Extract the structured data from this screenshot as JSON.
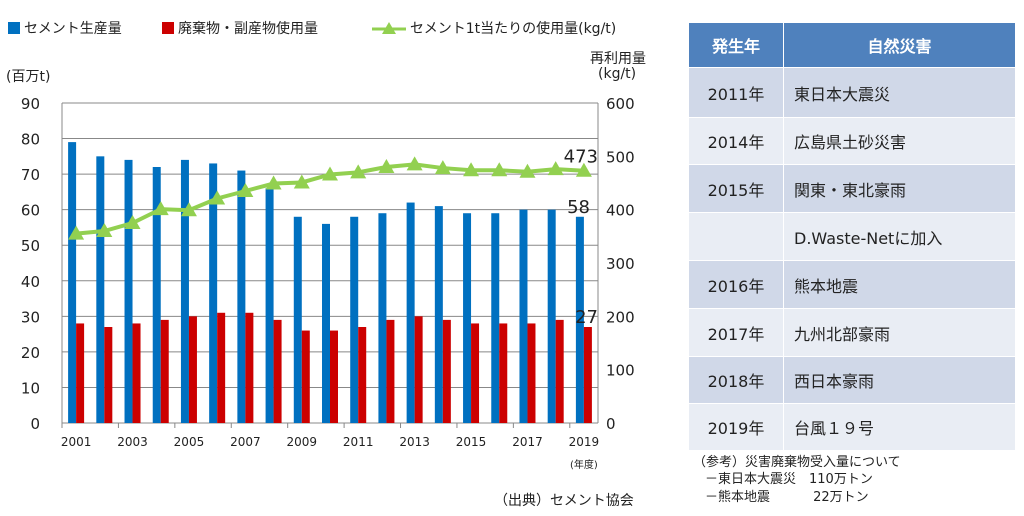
{
  "chart_data": {
    "type": "bar+line",
    "categories": [
      "2001",
      "2002",
      "2003",
      "2004",
      "2005",
      "2006",
      "2007",
      "2008",
      "2009",
      "2010",
      "2011",
      "2012",
      "2013",
      "2014",
      "2015",
      "2016",
      "2017",
      "2018",
      "2019"
    ],
    "x_tick_labels": [
      "2001",
      "2003",
      "2005",
      "2007",
      "2009",
      "2011",
      "2013",
      "2015",
      "2017",
      "2019"
    ],
    "xlabel": "(年度)",
    "ylabel": "(百万t)",
    "y2label_line1": "再利用量",
    "y2label_line2": "(kg/t)",
    "ylim": [
      0,
      90
    ],
    "y_ticks": [
      0,
      10,
      20,
      30,
      40,
      50,
      60,
      70,
      80,
      90
    ],
    "y2lim": [
      0,
      600
    ],
    "y2_ticks": [
      0,
      100,
      200,
      300,
      400,
      500,
      600
    ],
    "series": [
      {
        "name": "セメント生産量",
        "type": "bar",
        "axis": "left",
        "color": "#0070c0",
        "values": [
          79,
          75,
          74,
          72,
          74,
          73,
          71,
          66,
          58,
          56,
          58,
          59,
          62,
          61,
          59,
          59,
          60,
          60,
          58
        ]
      },
      {
        "name": "廃棄物・副産物使用量",
        "type": "bar",
        "axis": "left",
        "color": "#cc0000",
        "values": [
          28,
          27,
          28,
          29,
          30,
          31,
          31,
          29,
          26,
          26,
          27,
          29,
          30,
          29,
          28,
          28,
          28,
          29,
          27
        ]
      },
      {
        "name": "セメント1t当たりの使用量(kg/t)",
        "type": "line",
        "axis": "right",
        "color": "#92d050",
        "values": [
          355,
          360,
          375,
          401,
          399,
          421,
          435,
          449,
          451,
          466,
          470,
          480,
          485,
          478,
          474,
          474,
          471,
          476,
          473
        ]
      }
    ],
    "data_labels": {
      "line_last": "473",
      "blue_last": "58",
      "red_last": "27"
    },
    "grid": true,
    "legend": "top"
  },
  "table": {
    "headers": [
      "発生年",
      "自然災害"
    ],
    "rows": [
      [
        "2011年",
        "東日本大震災"
      ],
      [
        "2014年",
        "広島県土砂災害"
      ],
      [
        "2015年",
        "関東・東北豪雨"
      ],
      [
        "",
        "D.Waste-Netに加入"
      ],
      [
        "2016年",
        "熊本地震"
      ],
      [
        "2017年",
        "九州北部豪雨"
      ],
      [
        "2018年",
        "西日本豪雨"
      ],
      [
        "2019年",
        "台風１９号"
      ]
    ]
  },
  "notes": {
    "title": "（参考）災害廃棄物受入量について",
    "line1": "－東日本大震災　110万トン",
    "line2": "－熊本地震　　　  22万トン"
  },
  "source": "（出典）セメント協会"
}
